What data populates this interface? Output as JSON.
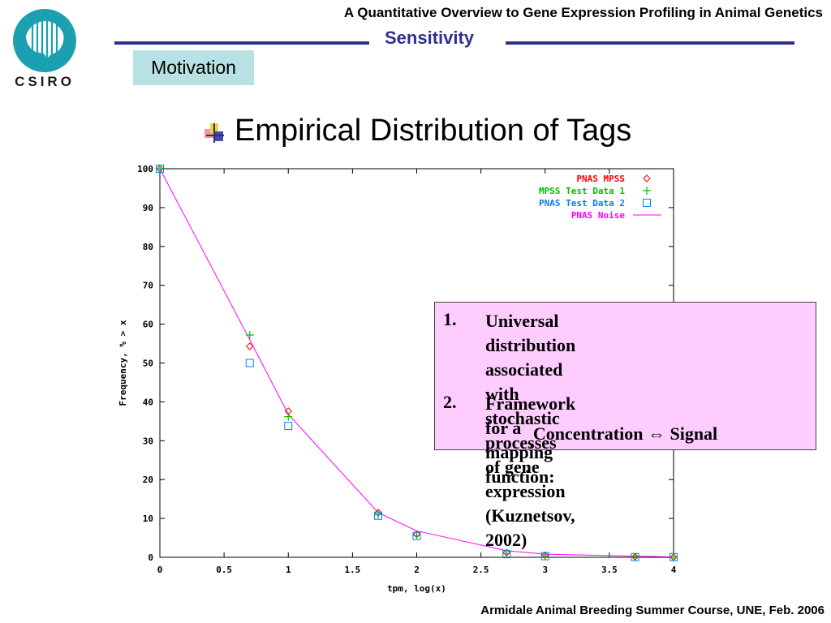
{
  "header": {
    "presentation_title": "A Quantitative Overview to Gene Expression Profiling in Animal Genetics",
    "section": "Sensitivity",
    "badge": "Motivation",
    "logo_text": "CSIRO"
  },
  "slide": {
    "title": "Empirical Distribution of Tags"
  },
  "notes": {
    "items": [
      {
        "num": "1.",
        "lines": [
          "Universal distribution associated",
          "with stochastic processes of gene",
          "expression (Kuznetsov, 2002)"
        ]
      },
      {
        "num": "2.",
        "lines": [
          "Framework for a mapping function:"
        ]
      }
    ],
    "centered_line": "Concentration ⇔ Signal"
  },
  "footer": {
    "text": "Armidale Animal Breeding Summer Course, UNE, Feb. 2006"
  },
  "colors": {
    "accent": "#2e3192",
    "badge_bg": "#b7e1e2",
    "note_bg": "#ffccff"
  },
  "chart_data": {
    "type": "line",
    "xlabel": "tpm, log(x)",
    "ylabel": "Frequency, % > x",
    "xlim": [
      0,
      4
    ],
    "ylim": [
      0,
      100
    ],
    "xticks": [
      "0",
      "0.5",
      "1",
      "1.5",
      "2",
      "2.5",
      "3",
      "3.5",
      "4"
    ],
    "yticks": [
      "0",
      "10",
      "20",
      "30",
      "40",
      "50",
      "60",
      "70",
      "80",
      "90",
      "100"
    ],
    "legend_position": "top-right",
    "grid": false,
    "series": [
      {
        "name": "PNAS MPSS",
        "marker": "diamond",
        "color": "#ff0000",
        "x": [
          0,
          0.7,
          1,
          1.7,
          2,
          2.7,
          3,
          3.7,
          4
        ],
        "y": [
          100,
          54.3,
          37.6,
          11.5,
          5.9,
          1.2,
          0.5,
          0.1,
          0.05
        ]
      },
      {
        "name": "MPSS Test Data 1",
        "marker": "plus",
        "color": "#00c000",
        "x": [
          0,
          0.7,
          1,
          1.7,
          2,
          2.7,
          3,
          3.7,
          4
        ],
        "y": [
          100,
          57.2,
          36.2,
          11.0,
          5.6,
          1.0,
          0.4,
          0.1,
          0.05
        ]
      },
      {
        "name": "PNAS Test Data 2",
        "marker": "square",
        "color": "#0080ff",
        "x": [
          0,
          0.7,
          1,
          1.7,
          2,
          2.7,
          3,
          3.7,
          4
        ],
        "y": [
          100,
          50.0,
          33.8,
          10.7,
          5.5,
          0.8,
          0.3,
          0.05,
          0.05
        ]
      },
      {
        "name": "PNAS Noise",
        "marker": "line",
        "color": "#ff00ff",
        "x": [
          0,
          0.7,
          1,
          1.7,
          2,
          2.7,
          3,
          3.7,
          4
        ],
        "y": [
          100,
          56.0,
          36.8,
          11.5,
          6.8,
          1.7,
          0.8,
          0.3,
          0.1
        ]
      }
    ]
  }
}
